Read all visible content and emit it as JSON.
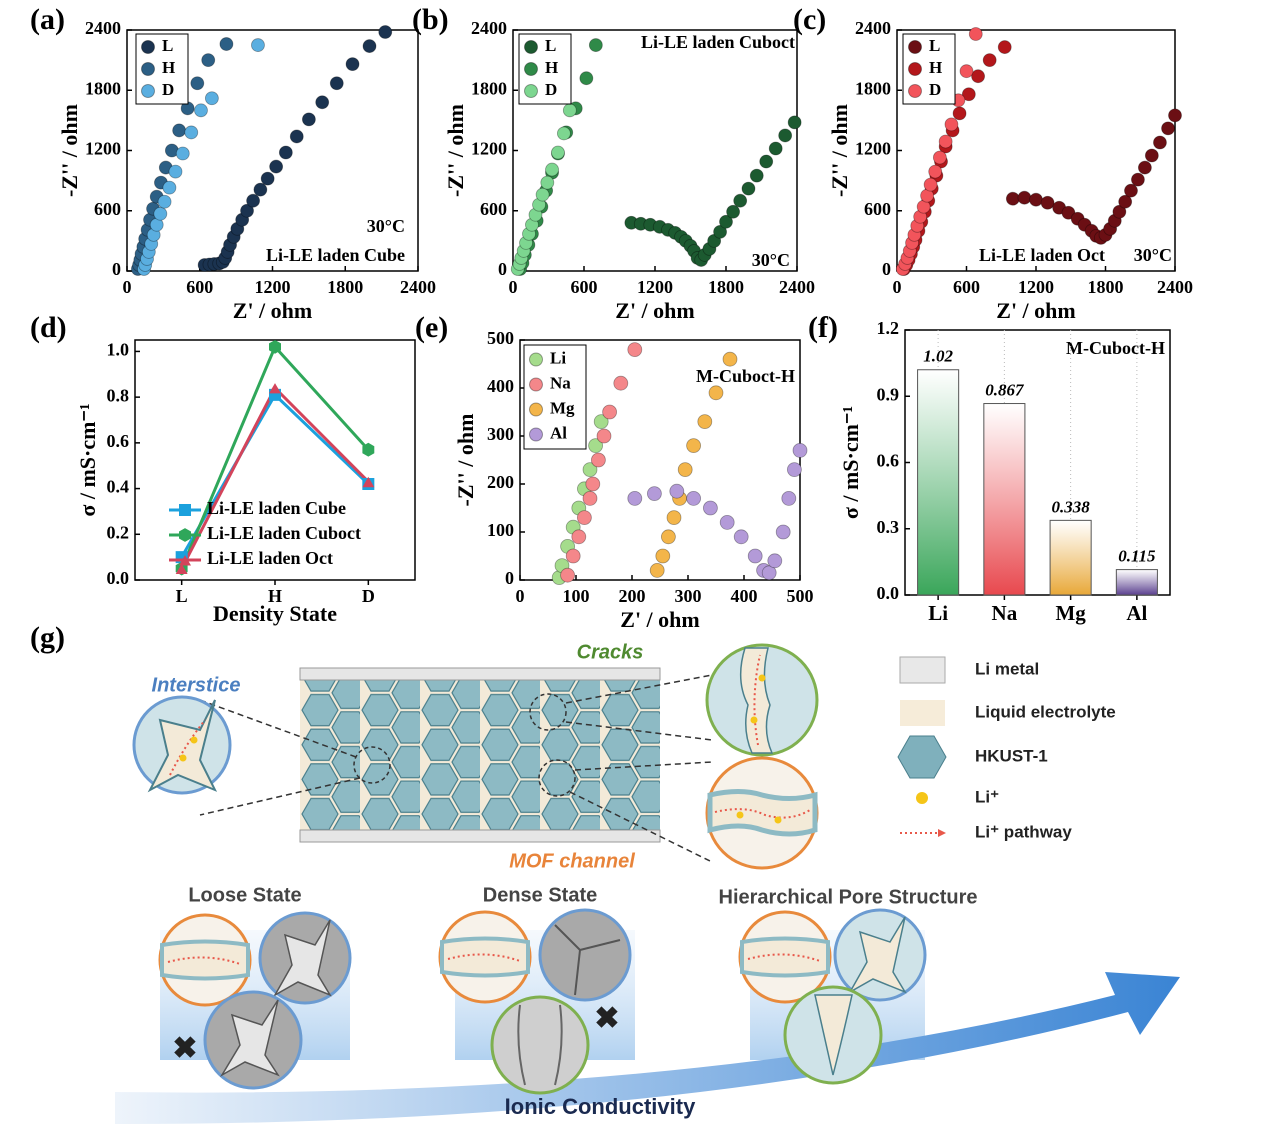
{
  "chart_data": [
    {
      "type": "scatter",
      "panel_label": "(a)",
      "xlabel": "Z' / ohm",
      "ylabel": "-Z'' / ohm",
      "xlim": [
        0,
        2400
      ],
      "ylim": [
        0,
        2400
      ],
      "xticks": [
        0,
        600,
        1200,
        1800,
        2400
      ],
      "yticks": [
        0,
        600,
        1200,
        1800,
        2400
      ],
      "annotations": [
        "30°C",
        "Li-LE laden Cube"
      ],
      "series": [
        {
          "name": "L",
          "color": "#1b3350",
          "x": [
            640,
            680,
            720,
            760,
            790,
            810,
            830,
            850,
            880,
            910,
            950,
            990,
            1040,
            1100,
            1160,
            1230,
            1310,
            1400,
            1500,
            1610,
            1730,
            1860,
            2000,
            2130
          ],
          "values": [
            60,
            65,
            70,
            75,
            90,
            130,
            190,
            260,
            340,
            420,
            510,
            600,
            700,
            810,
            920,
            1040,
            1180,
            1340,
            1510,
            1680,
            1870,
            2060,
            2240,
            2380
          ]
        },
        {
          "name": "H",
          "color": "#2c5f85",
          "x": [
            90,
            100,
            110,
            120,
            135,
            150,
            170,
            190,
            215,
            245,
            280,
            320,
            370,
            430,
            500,
            580,
            670,
            820
          ],
          "values": [
            20,
            60,
            110,
            170,
            240,
            320,
            410,
            510,
            620,
            740,
            880,
            1030,
            1200,
            1400,
            1620,
            1870,
            2100,
            2260
          ]
        },
        {
          "name": "D",
          "color": "#5aaee0",
          "x": [
            140,
            150,
            165,
            180,
            200,
            220,
            245,
            275,
            310,
            350,
            400,
            460,
            530,
            610,
            700,
            1080
          ],
          "values": [
            20,
            60,
            120,
            190,
            270,
            360,
            460,
            570,
            690,
            830,
            990,
            1170,
            1380,
            1600,
            1720,
            2250
          ]
        }
      ]
    },
    {
      "type": "scatter",
      "panel_label": "(b)",
      "xlabel": "Z' / ohm",
      "ylabel": "-Z'' / ohm",
      "xlim": [
        0,
        2400
      ],
      "ylim": [
        0,
        2400
      ],
      "xticks": [
        0,
        600,
        1200,
        1800,
        2400
      ],
      "yticks": [
        0,
        600,
        1200,
        1800,
        2400
      ],
      "annotations": [
        "Li-LE laden Cuboct",
        "30°C"
      ],
      "series": [
        {
          "name": "L",
          "color": "#1c5a30",
          "x": [
            1000,
            1080,
            1160,
            1240,
            1310,
            1370,
            1420,
            1460,
            1500,
            1530,
            1560,
            1590,
            1620,
            1660,
            1700,
            1750,
            1800,
            1860,
            1920,
            1990,
            2060,
            2140,
            2220,
            2300,
            2380
          ],
          "values": [
            480,
            470,
            460,
            440,
            410,
            380,
            340,
            300,
            250,
            200,
            130,
            110,
            160,
            220,
            300,
            390,
            490,
            590,
            700,
            820,
            950,
            1090,
            1220,
            1350,
            1480
          ]
        },
        {
          "name": "H",
          "color": "#2f8a48",
          "x": [
            60,
            80,
            100,
            130,
            160,
            200,
            240,
            280,
            330,
            380,
            450,
            530,
            620,
            700
          ],
          "values": [
            20,
            80,
            160,
            260,
            370,
            500,
            640,
            800,
            980,
            1170,
            1380,
            1620,
            1920,
            2250
          ]
        },
        {
          "name": "D",
          "color": "#7dd690",
          "x": [
            40,
            55,
            70,
            90,
            110,
            135,
            160,
            190,
            220,
            250,
            290,
            330,
            380,
            430,
            480
          ],
          "values": [
            20,
            70,
            130,
            200,
            280,
            370,
            460,
            560,
            660,
            760,
            880,
            1010,
            1180,
            1370,
            1600
          ]
        }
      ]
    },
    {
      "type": "scatter",
      "panel_label": "(c)",
      "xlabel": "Z' / ohm",
      "ylabel": "-Z'' / ohm",
      "xlim": [
        0,
        2400
      ],
      "ylim": [
        0,
        2400
      ],
      "xticks": [
        0,
        600,
        1200,
        1800,
        2400
      ],
      "yticks": [
        0,
        600,
        1200,
        1800,
        2400
      ],
      "annotations": [
        "Li-LE laden Oct",
        "30°C"
      ],
      "series": [
        {
          "name": "L",
          "color": "#6b0f14",
          "x": [
            1000,
            1100,
            1200,
            1300,
            1400,
            1480,
            1560,
            1620,
            1680,
            1720,
            1760,
            1800,
            1840,
            1880,
            1920,
            1970,
            2020,
            2080,
            2140,
            2200,
            2270,
            2340,
            2400
          ],
          "values": [
            720,
            730,
            710,
            680,
            630,
            580,
            520,
            460,
            400,
            350,
            330,
            360,
            420,
            500,
            590,
            690,
            800,
            910,
            1030,
            1150,
            1280,
            1420,
            1550
          ]
        },
        {
          "name": "H",
          "color": "#b3171b",
          "x": [
            60,
            80,
            100,
            120,
            140,
            160,
            185,
            210,
            240,
            270,
            300,
            340,
            380,
            420,
            480,
            540,
            620,
            700,
            800,
            930
          ],
          "values": [
            20,
            60,
            110,
            170,
            240,
            310,
            400,
            490,
            590,
            700,
            820,
            950,
            1090,
            1240,
            1400,
            1570,
            1760,
            1940,
            2100,
            2230
          ]
        },
        {
          "name": "D",
          "color": "#f2545b",
          "x": [
            50,
            70,
            90,
            110,
            130,
            150,
            175,
            200,
            230,
            260,
            290,
            330,
            370,
            420,
            470,
            530,
            600,
            680
          ],
          "values": [
            20,
            70,
            130,
            200,
            280,
            360,
            450,
            540,
            640,
            750,
            860,
            990,
            1130,
            1290,
            1460,
            1700,
            1990,
            2360
          ]
        }
      ]
    },
    {
      "type": "line",
      "panel_label": "(d)",
      "xlabel": "Density State",
      "ylabel": "σ / mS·cm⁻¹",
      "categories": [
        "L",
        "H",
        "D"
      ],
      "ylim": [
        0,
        1.05
      ],
      "yticks": [
        {
          "value": 0,
          "label": "0.0"
        },
        0.2,
        0.4,
        0.6,
        0.8,
        {
          "value": 1,
          "label": "1.0"
        }
      ],
      "series": [
        {
          "name": "Li-LE laden Cube",
          "color": "#1ba1dd",
          "values": [
            0.1,
            0.81,
            0.42
          ]
        },
        {
          "name": "Li-LE laden Cuboct",
          "color": "#2fa75a",
          "values": [
            0.05,
            1.02,
            0.57
          ]
        },
        {
          "name": "Li-LE laden Oct",
          "color": "#d3445b",
          "values": [
            0.05,
            0.84,
            0.43
          ]
        }
      ]
    },
    {
      "type": "scatter",
      "panel_label": "(e)",
      "xlabel": "Z' / ohm",
      "ylabel": "-Z'' / ohm",
      "xlim": [
        0,
        500
      ],
      "ylim": [
        0,
        500
      ],
      "xticks": [
        0,
        100,
        200,
        300,
        400,
        500
      ],
      "yticks": [
        0,
        100,
        200,
        300,
        400,
        500
      ],
      "annotations": [
        "M-Cuboct-H"
      ],
      "series": [
        {
          "name": "Li",
          "color": "#a5dc8c",
          "x": [
            70,
            75,
            85,
            95,
            105,
            115,
            125,
            135,
            145
          ],
          "values": [
            5,
            30,
            70,
            110,
            150,
            190,
            230,
            280,
            330
          ]
        },
        {
          "name": "Na",
          "color": "#f4878a",
          "x": [
            85,
            95,
            105,
            115,
            125,
            130,
            140,
            150,
            160,
            180,
            205
          ],
          "values": [
            10,
            50,
            90,
            130,
            170,
            200,
            250,
            300,
            350,
            410,
            480
          ]
        },
        {
          "name": "Mg",
          "color": "#f3b54a",
          "x": [
            245,
            255,
            265,
            275,
            285,
            295,
            310,
            330,
            350,
            375
          ],
          "values": [
            20,
            50,
            90,
            130,
            170,
            230,
            280,
            330,
            390,
            460
          ]
        },
        {
          "name": "Al",
          "color": "#b39ad8",
          "x": [
            205,
            240,
            280,
            310,
            340,
            370,
            395,
            420,
            435,
            445,
            455,
            470,
            480,
            490,
            500
          ],
          "values": [
            170,
            180,
            185,
            170,
            150,
            120,
            90,
            50,
            20,
            15,
            40,
            100,
            170,
            230,
            270
          ]
        }
      ]
    },
    {
      "type": "bar",
      "panel_label": "(f)",
      "ylabel": "σ / mS·cm⁻¹",
      "categories": [
        "Li",
        "Na",
        "Mg",
        "Al"
      ],
      "values": [
        1.02,
        0.867,
        0.338,
        0.115
      ],
      "colors": [
        "#3aa65a",
        "#e8484e",
        "#e8a838",
        "#5a3f8f"
      ],
      "ylim": [
        0,
        1.2
      ],
      "yticks": [
        {
          "value": 0,
          "label": "0.0"
        },
        0.3,
        0.6,
        0.9,
        1.2
      ],
      "annotations": [
        "M-Cuboct-H"
      ]
    }
  ],
  "diagram": {
    "panel_label": "(g)",
    "callouts": {
      "interstice": "Interstice",
      "cracks": "Cracks",
      "mof_channel": "MOF channel"
    },
    "legend": [
      "Li metal",
      "Liquid electrolyte",
      "HKUST-1",
      "Li⁺",
      "Li⁺ pathway"
    ],
    "states": [
      "Loose State",
      "Dense State",
      "Hierarchical Pore Structure"
    ],
    "trend": "Ionic Conductivity"
  }
}
